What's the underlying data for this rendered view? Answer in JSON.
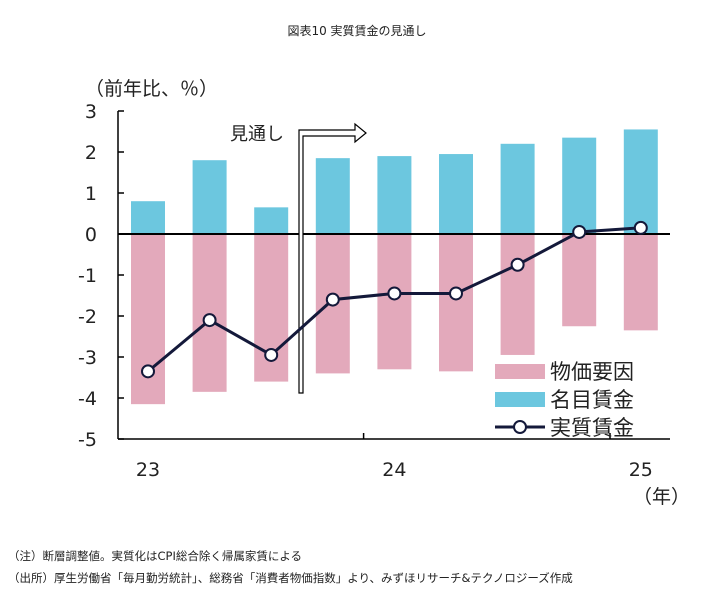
{
  "chart_data": {
    "type": "bar",
    "title": "図表10 実質賃金の見通し",
    "ylabel": "（前年比、％）",
    "xlabel": "（年）",
    "ylim": [
      -5,
      3
    ],
    "yticks": [
      3,
      2,
      1,
      0,
      -1,
      -2,
      -3,
      -4,
      -5
    ],
    "xtick_labels": [
      "23",
      "24",
      "25"
    ],
    "categories": [
      "2023Q1",
      "2023Q2",
      "2023Q3",
      "2023Q4",
      "2024Q1",
      "2024Q2",
      "2024Q3",
      "2024Q4",
      "2025Q1"
    ],
    "series": [
      {
        "name": "物価要因",
        "type": "bar",
        "color": "#e3a9bb",
        "values": [
          -4.15,
          -3.85,
          -3.6,
          -3.4,
          -3.3,
          -3.35,
          -2.95,
          -2.25,
          -2.35
        ]
      },
      {
        "name": "名目賃金",
        "type": "bar",
        "color": "#6cc7df",
        "values": [
          0.8,
          1.8,
          0.65,
          1.85,
          1.9,
          1.95,
          2.2,
          2.35,
          2.55
        ]
      },
      {
        "name": "実質賃金",
        "type": "line",
        "color": "#14193a",
        "values": [
          -3.35,
          -2.1,
          -2.95,
          -1.6,
          -1.45,
          -1.45,
          -0.75,
          0.05,
          0.15
        ]
      }
    ],
    "annotation": "見通し",
    "legend": "bottom-right",
    "grid": false
  },
  "notes": {
    "note": "（注）断層調整値。実質化はCPI総合除く帰属家賃による",
    "source": "（出所）厚生労働省「毎月勤労統計」、総務省「消費者物価指数」より、みずほリサーチ&テクノロジーズ作成"
  }
}
